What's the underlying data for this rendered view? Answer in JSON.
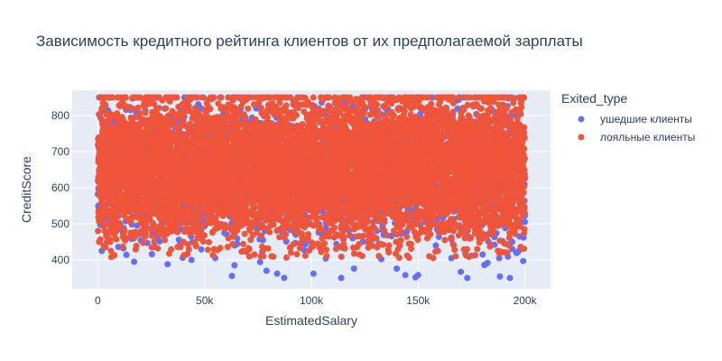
{
  "chart_data": {
    "type": "scatter",
    "title": "Зависимость кредитного рейтинга клиентов от их предполагаемой зарплаты",
    "xlabel": "EstimatedSalary",
    "ylabel": "CreditScore",
    "xlim": [
      -12000,
      212000
    ],
    "ylim": [
      320,
      870
    ],
    "xticks": [
      0,
      50000,
      100000,
      150000,
      200000
    ],
    "xtick_labels": [
      "0",
      "50k",
      "100k",
      "150k",
      "200k"
    ],
    "yticks": [
      400,
      500,
      600,
      700,
      800
    ],
    "ytick_labels": [
      "400",
      "500",
      "600",
      "700",
      "800"
    ],
    "grid": true,
    "plot_background": "#e5ecf6",
    "legend": {
      "title": "Exited_type",
      "placement": "right"
    },
    "series": [
      {
        "name": "ушедшие клиенты",
        "color": "#636efa",
        "n_points": 2037,
        "x_range": [
          0,
          200000
        ],
        "y_range": [
          350,
          850
        ],
        "y_center": 645,
        "y_spread": 100,
        "outliers": [
          {
            "x": 17000,
            "y": 395
          },
          {
            "x": 55000,
            "y": 405
          },
          {
            "x": 64000,
            "y": 385
          },
          {
            "x": 79000,
            "y": 370
          },
          {
            "x": 84000,
            "y": 362
          },
          {
            "x": 101000,
            "y": 362
          },
          {
            "x": 114000,
            "y": 350
          },
          {
            "x": 120000,
            "y": 376
          },
          {
            "x": 140000,
            "y": 376
          },
          {
            "x": 144000,
            "y": 358
          },
          {
            "x": 150000,
            "y": 358
          },
          {
            "x": 170000,
            "y": 367
          },
          {
            "x": 173000,
            "y": 350
          },
          {
            "x": 181000,
            "y": 386
          },
          {
            "x": 188000,
            "y": 405
          },
          {
            "x": 193000,
            "y": 350
          }
        ]
      },
      {
        "name": "лояльные клиенты",
        "color": "#ef553b",
        "n_points": 7963,
        "x_range": [
          0,
          200000
        ],
        "y_range": [
          405,
          850
        ],
        "y_center": 652,
        "y_spread": 95
      }
    ]
  }
}
